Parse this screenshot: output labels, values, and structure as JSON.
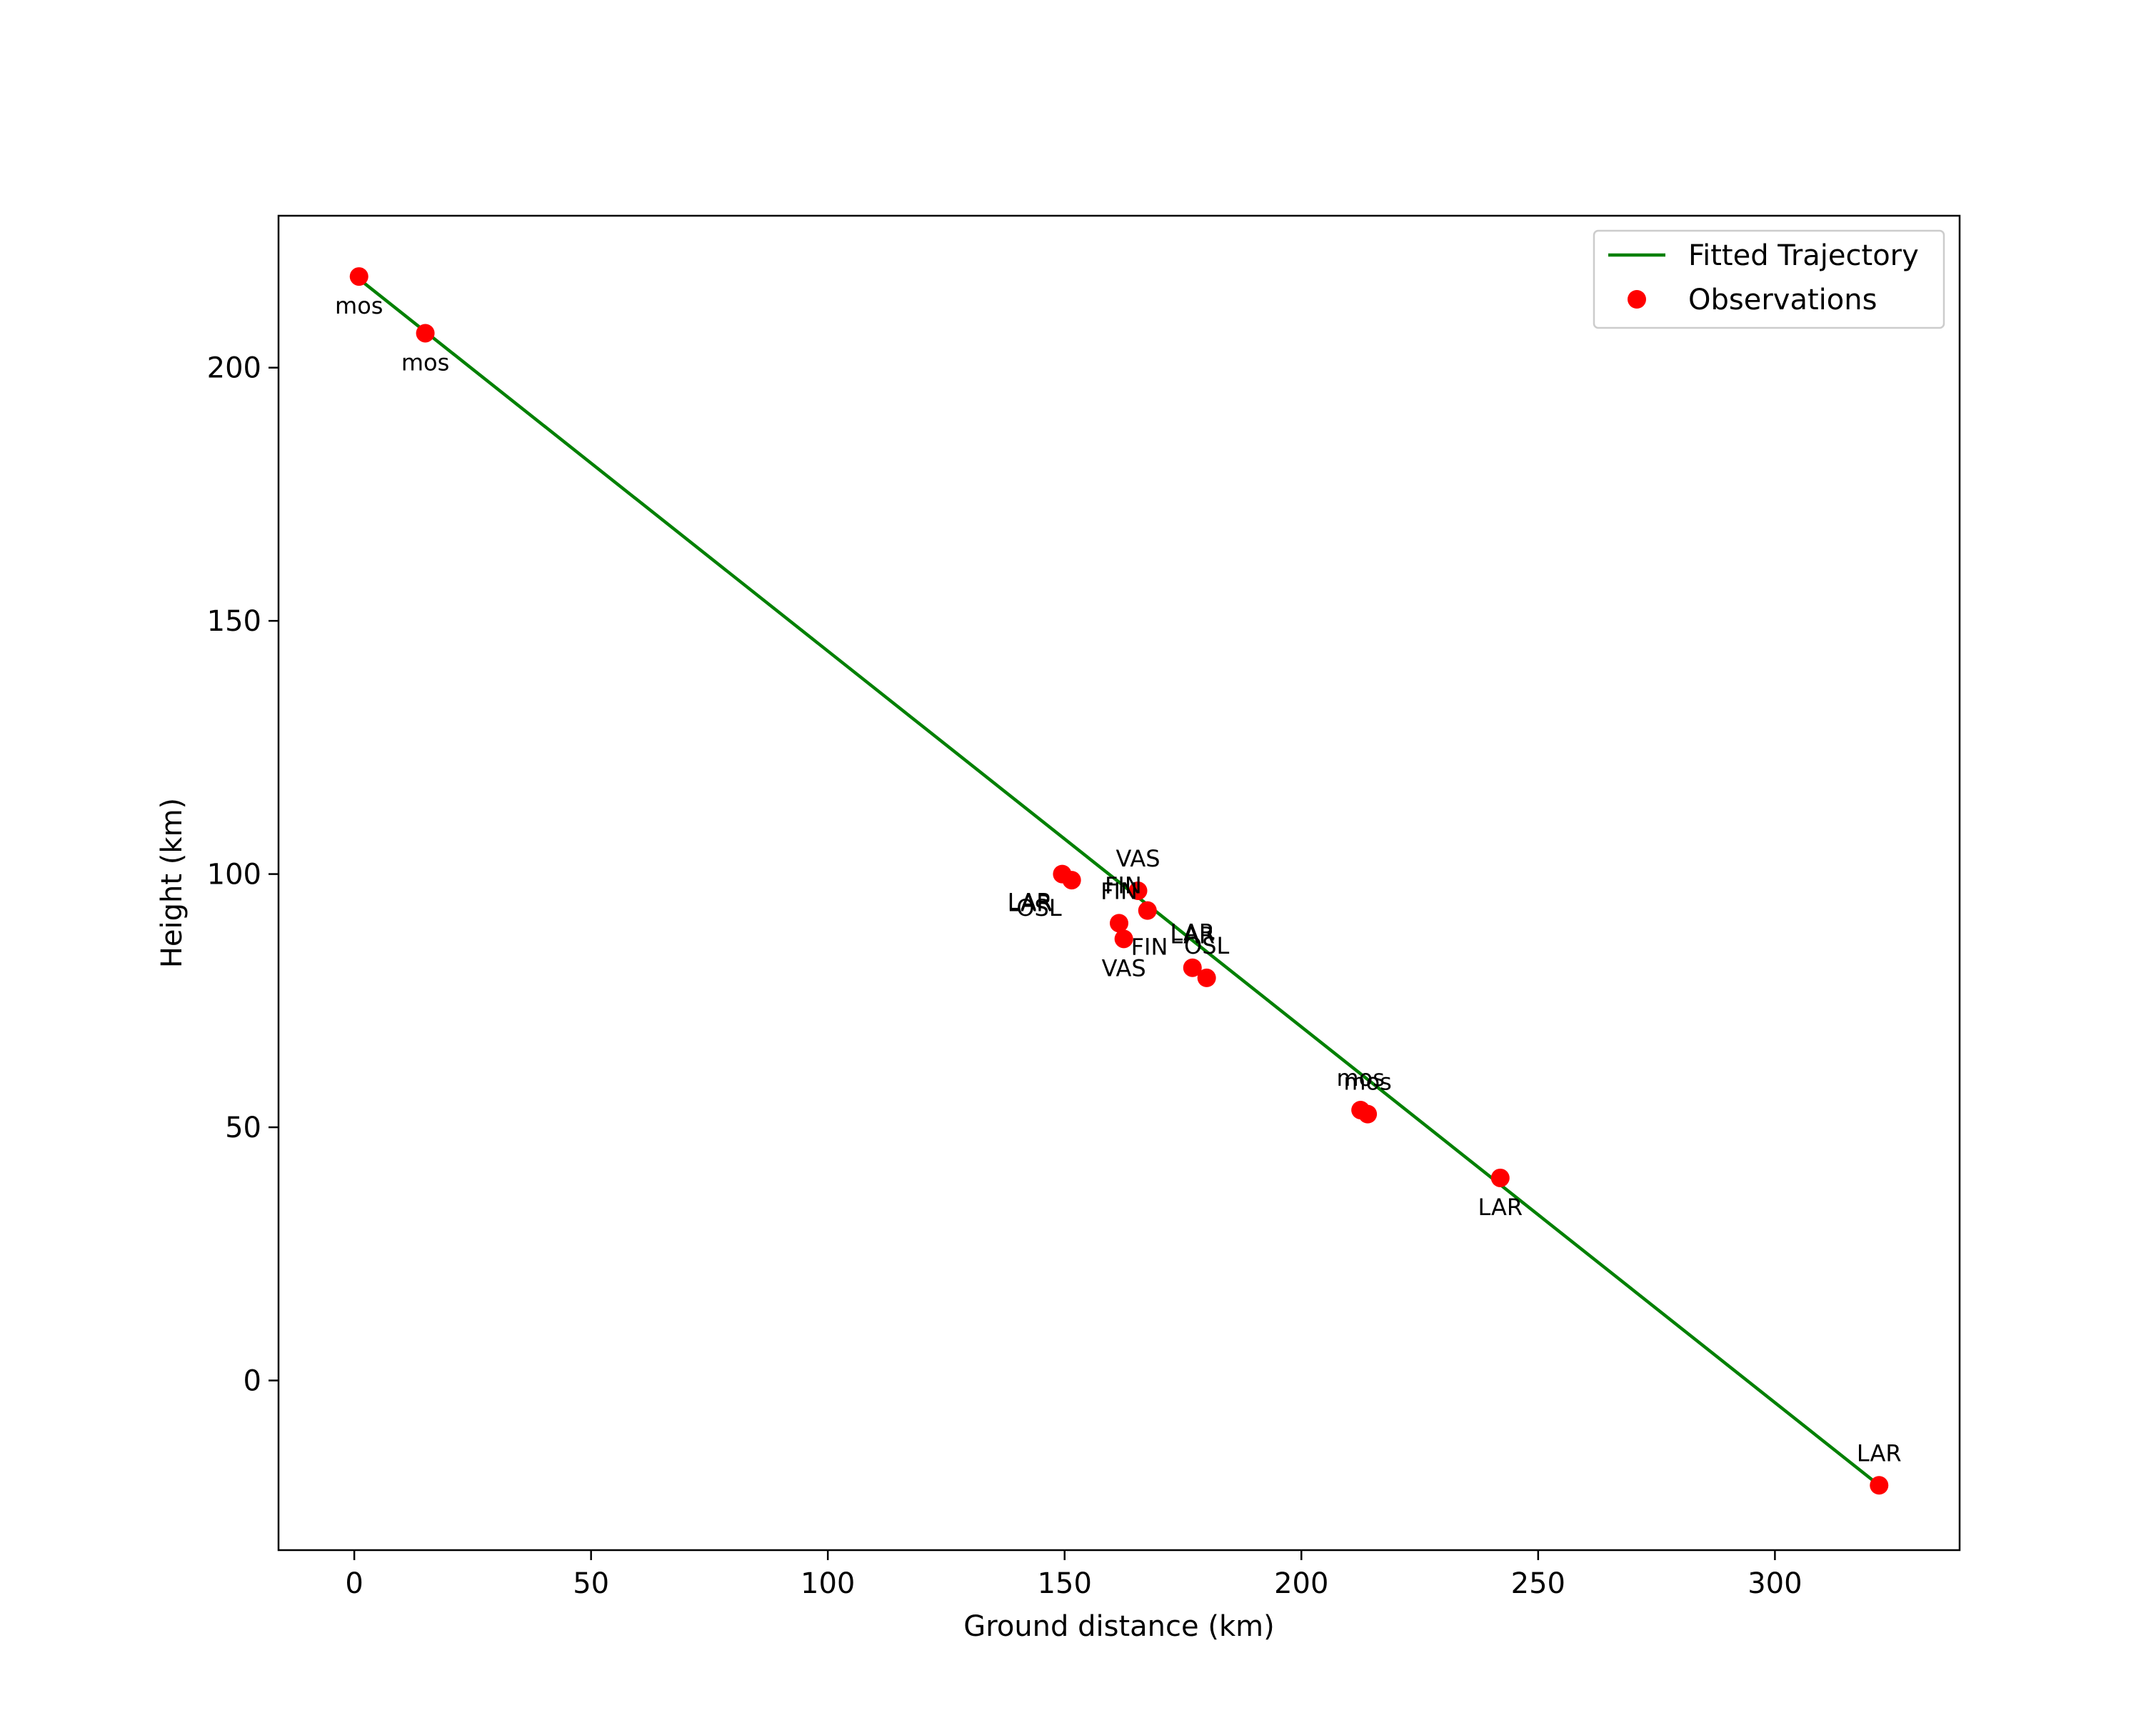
{
  "chart_data": {
    "type": "scatter",
    "title": "",
    "xlabel": "Ground distance (km)",
    "ylabel": "Height (km)",
    "xlim": [
      -16,
      339
    ],
    "ylim": [
      -33.5,
      230
    ],
    "xticks": [
      0,
      50,
      100,
      150,
      200,
      250,
      300
    ],
    "yticks": [
      0,
      50,
      100,
      150,
      200
    ],
    "grid": false,
    "legend_position": "upper right",
    "colors": {
      "line": "#008000",
      "points": "#ff0000"
    },
    "series": [
      {
        "name": "Fitted Trajectory",
        "kind": "line",
        "x": [
          1.0,
          322.0
        ],
        "y": [
          217.5,
          -20.7
        ]
      },
      {
        "name": "Observations",
        "kind": "scatter",
        "points": [
          {
            "x": 1.0,
            "y": 218.0,
            "label": "mos",
            "anchor": "below"
          },
          {
            "x": 15.0,
            "y": 206.8,
            "label": "mos",
            "anchor": "below"
          },
          {
            "x": 149.5,
            "y": 100.0,
            "label": "LAR",
            "anchor": "below-left"
          },
          {
            "x": 151.5,
            "y": 98.8,
            "label": "OSL",
            "anchor": "below-left"
          },
          {
            "x": 165.5,
            "y": 96.7,
            "label": "VAS",
            "anchor": "above"
          },
          {
            "x": 167.5,
            "y": 92.8,
            "label": "FIN",
            "anchor": "left"
          },
          {
            "x": 161.5,
            "y": 90.3,
            "label": "FIN",
            "anchor": "above"
          },
          {
            "x": 162.5,
            "y": 87.2,
            "label": "VAS",
            "anchor": "below"
          },
          {
            "x": 177.0,
            "y": 81.5,
            "label": "LAR",
            "anchor": "above"
          },
          {
            "x": 180.0,
            "y": 79.5,
            "label": "OSL",
            "anchor": "above"
          },
          {
            "x": 212.5,
            "y": 53.4,
            "label": "mos",
            "anchor": "above"
          },
          {
            "x": 214.0,
            "y": 52.6,
            "label": "mos",
            "anchor": "above"
          },
          {
            "x": 242.0,
            "y": 40.0,
            "label": "LAR",
            "anchor": "below"
          },
          {
            "x": 322.0,
            "y": -20.7,
            "label": "LAR",
            "anchor": "above"
          }
        ],
        "extra_labels": [
          {
            "label": "LAR",
            "x": 149.5,
            "y": 100.0,
            "anchor": "below-left-2"
          },
          {
            "label": "FIN",
            "x": 162.5,
            "y": 87.2,
            "anchor": "right"
          },
          {
            "label": "LAR",
            "x": 177.0,
            "y": 81.5,
            "anchor": "above-2"
          }
        ]
      }
    ],
    "legend": [
      {
        "label": "Fitted Trajectory",
        "marker": "line"
      },
      {
        "label": "Observations",
        "marker": "dot"
      }
    ]
  }
}
